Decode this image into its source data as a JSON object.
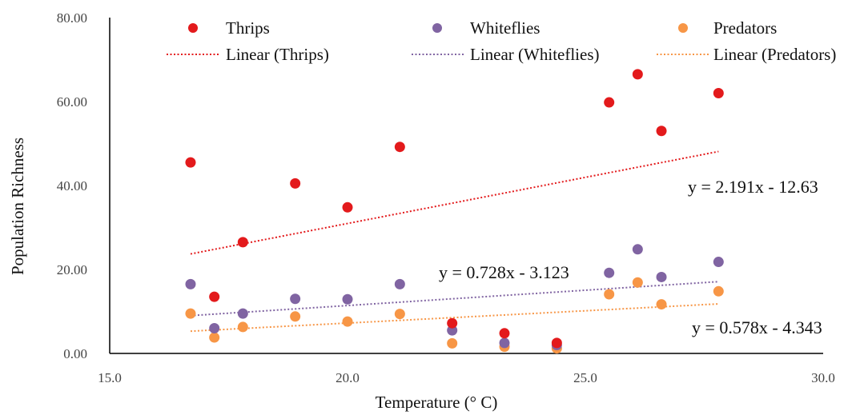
{
  "chart_data": {
    "type": "scatter",
    "title": "",
    "xlabel": "Temperature (° C)",
    "ylabel": "Population Richness",
    "xlim": [
      15.0,
      30.0
    ],
    "ylim": [
      0.0,
      80.0
    ],
    "x_ticks": [
      "15.0",
      "20.0",
      "25.0",
      "30.0"
    ],
    "y_ticks": [
      "0.00",
      "20.00",
      "40.00",
      "60.00",
      "80.00"
    ],
    "grid": false,
    "legend_position": "top",
    "series": [
      {
        "name": "Thrips",
        "color": "#e31a1c",
        "trend_name": "Linear (Thrips)",
        "equation": "y = 2.191x - 12.63",
        "x": [
          16.7,
          17.2,
          17.8,
          18.9,
          20.0,
          21.1,
          22.2,
          23.3,
          24.4,
          25.5,
          26.1,
          26.6,
          27.8
        ],
        "y": [
          45.5,
          13.5,
          26.5,
          40.5,
          34.8,
          49.2,
          7.2,
          4.8,
          2.5,
          59.8,
          66.5,
          53.0,
          62.0
        ]
      },
      {
        "name": "Whiteflies",
        "color": "#8064a2",
        "trend_name": "Linear (Whiteflies)",
        "equation": "y = 0.728x - 3.123",
        "x": [
          16.7,
          17.2,
          17.8,
          18.9,
          20.0,
          21.1,
          22.2,
          23.3,
          24.4,
          25.5,
          26.1,
          26.6,
          27.8
        ],
        "y": [
          16.5,
          6.0,
          9.5,
          13.0,
          12.9,
          16.5,
          5.5,
          2.5,
          2.0,
          19.2,
          24.8,
          18.2,
          21.8
        ]
      },
      {
        "name": "Predators",
        "color": "#f79646",
        "trend_name": "Linear (Predators)",
        "equation": "y = 0.578x - 4.343",
        "x": [
          16.7,
          17.2,
          17.8,
          18.9,
          20.0,
          21.1,
          22.2,
          23.3,
          24.4,
          25.5,
          26.1,
          26.6,
          27.8
        ],
        "y": [
          9.5,
          3.8,
          6.3,
          8.8,
          7.6,
          9.4,
          2.4,
          1.6,
          1.2,
          14.1,
          16.9,
          11.7,
          14.8
        ]
      }
    ],
    "trendlines": [
      {
        "series": "Thrips",
        "x": [
          16.7,
          27.8
        ],
        "y": [
          23.7,
          48.1
        ]
      },
      {
        "series": "Whiteflies",
        "x": [
          16.7,
          27.8
        ],
        "y": [
          9.0,
          17.1
        ]
      },
      {
        "series": "Predators",
        "x": [
          16.7,
          27.8
        ],
        "y": [
          5.3,
          11.8
        ]
      }
    ]
  }
}
